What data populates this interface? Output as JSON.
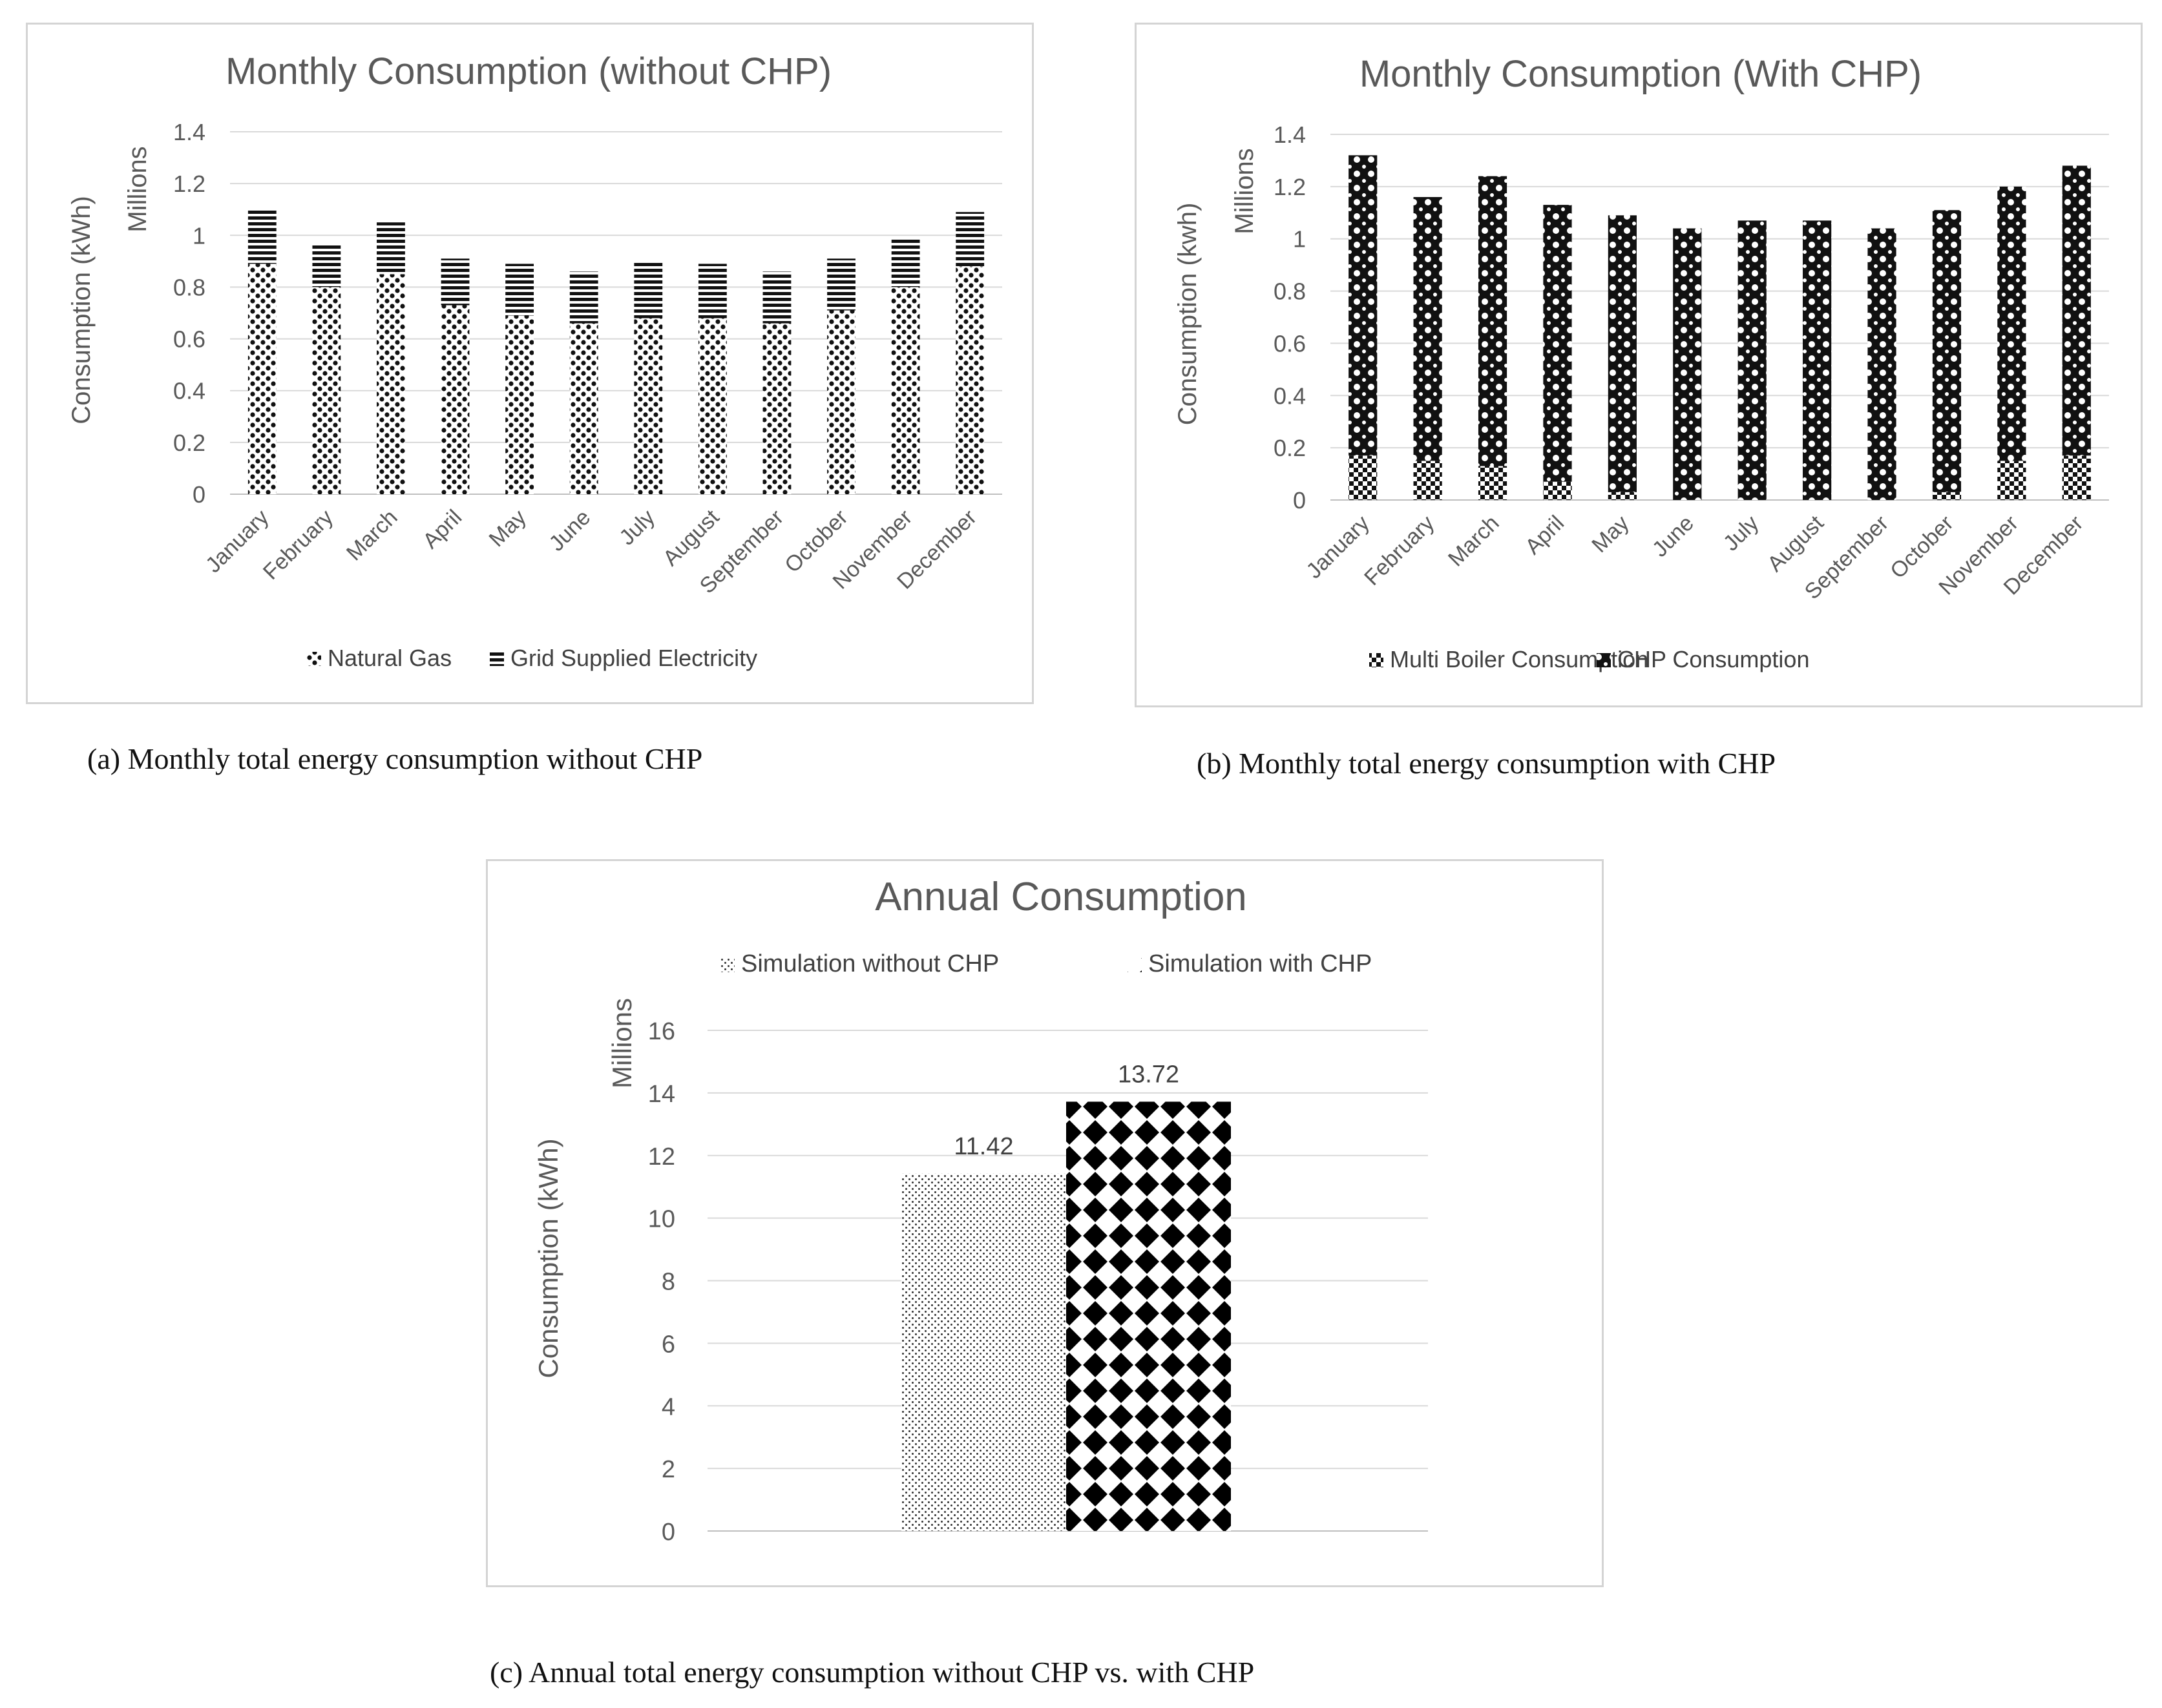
{
  "chart_data": [
    {
      "id": "a",
      "type": "bar",
      "stacked": true,
      "title": "Monthly Consumption (without CHP)",
      "ylabel": "Consumption (kWh)",
      "yunit": "Millions",
      "ylim": [
        0,
        1.4
      ],
      "ytick_labels": [
        "0",
        "0.2",
        "0.4",
        "0.6",
        "0.8",
        "1",
        "1.2",
        "1.4"
      ],
      "categories": [
        "January",
        "February",
        "March",
        "April",
        "May",
        "June",
        "July",
        "August",
        "September",
        "October",
        "November",
        "December"
      ],
      "series": [
        {
          "name": "Natural Gas",
          "values": [
            0.89,
            0.8,
            0.85,
            0.73,
            0.69,
            0.66,
            0.68,
            0.68,
            0.66,
            0.71,
            0.8,
            0.88
          ]
        },
        {
          "name": "Grid Supplied Electricity",
          "values": [
            0.21,
            0.17,
            0.2,
            0.18,
            0.2,
            0.2,
            0.22,
            0.21,
            0.2,
            0.2,
            0.19,
            0.21
          ]
        }
      ],
      "legend_position": "bottom",
      "grid": true
    },
    {
      "id": "b",
      "type": "bar",
      "stacked": true,
      "title": "Monthly Consumption (With CHP)",
      "ylabel": "Consumption (kwh)",
      "yunit": "Millions",
      "ylim": [
        0,
        1.4
      ],
      "ytick_labels": [
        "0",
        "0.2",
        "0.4",
        "0.6",
        "0.8",
        "1",
        "1.2",
        "1.4"
      ],
      "categories": [
        "January",
        "February",
        "March",
        "April",
        "May",
        "June",
        "July",
        "August",
        "September",
        "October",
        "November",
        "December"
      ],
      "series": [
        {
          "name": "Multi Boiler Consumption",
          "values": [
            0.17,
            0.15,
            0.13,
            0.07,
            0.03,
            0.0,
            0.0,
            0.0,
            0.0,
            0.03,
            0.15,
            0.17
          ]
        },
        {
          "name": "CHP Consumption",
          "values": [
            1.15,
            1.01,
            1.11,
            1.06,
            1.06,
            1.04,
            1.07,
            1.07,
            1.04,
            1.08,
            1.05,
            1.11
          ]
        }
      ],
      "legend_position": "bottom",
      "grid": true
    },
    {
      "id": "c",
      "type": "bar",
      "title": "Annual Consumption",
      "ylabel": "Consumption (kWh)",
      "yunit": "Millions",
      "ylim": [
        0,
        16
      ],
      "ytick_labels": [
        "0",
        "2",
        "4",
        "6",
        "8",
        "10",
        "12",
        "14",
        "16"
      ],
      "categories": [
        ""
      ],
      "series": [
        {
          "name": "Simulation without CHP",
          "values": [
            11.42
          ],
          "label": "11.42"
        },
        {
          "name": "Simulation with CHP",
          "values": [
            13.72
          ],
          "label": "13.72"
        }
      ],
      "legend_position": "top",
      "grid": true
    }
  ],
  "captions": {
    "a": "(a)  Monthly total energy consumption without CHP",
    "b": "(b)  Monthly total energy consumption with CHP",
    "c": "(c)  Annual total energy consumption without CHP vs. with CHP"
  }
}
